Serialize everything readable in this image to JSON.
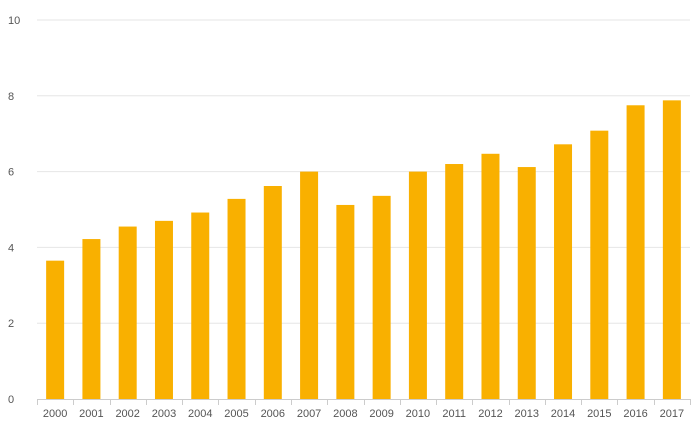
{
  "chart_data": {
    "type": "bar",
    "title": "",
    "xlabel": "",
    "ylabel": "",
    "categories": [
      "2000",
      "2001",
      "2002",
      "2003",
      "2004",
      "2005",
      "2006",
      "2007",
      "2008",
      "2009",
      "2010",
      "2011",
      "2012",
      "2013",
      "2014",
      "2015",
      "2016",
      "2017"
    ],
    "series": [
      {
        "values": [
          3.65,
          4.22,
          4.55,
          4.7,
          4.92,
          5.28,
          5.62,
          6.0,
          5.12,
          5.36,
          6.0,
          6.2,
          6.47,
          6.12,
          6.72,
          7.08,
          7.75,
          7.88
        ]
      }
    ],
    "ylim": [
      0,
      10
    ],
    "yticks": [
      "0",
      "2",
      "4",
      "6",
      "8",
      "10"
    ],
    "grid": true,
    "bar_color": "#f9b000"
  }
}
